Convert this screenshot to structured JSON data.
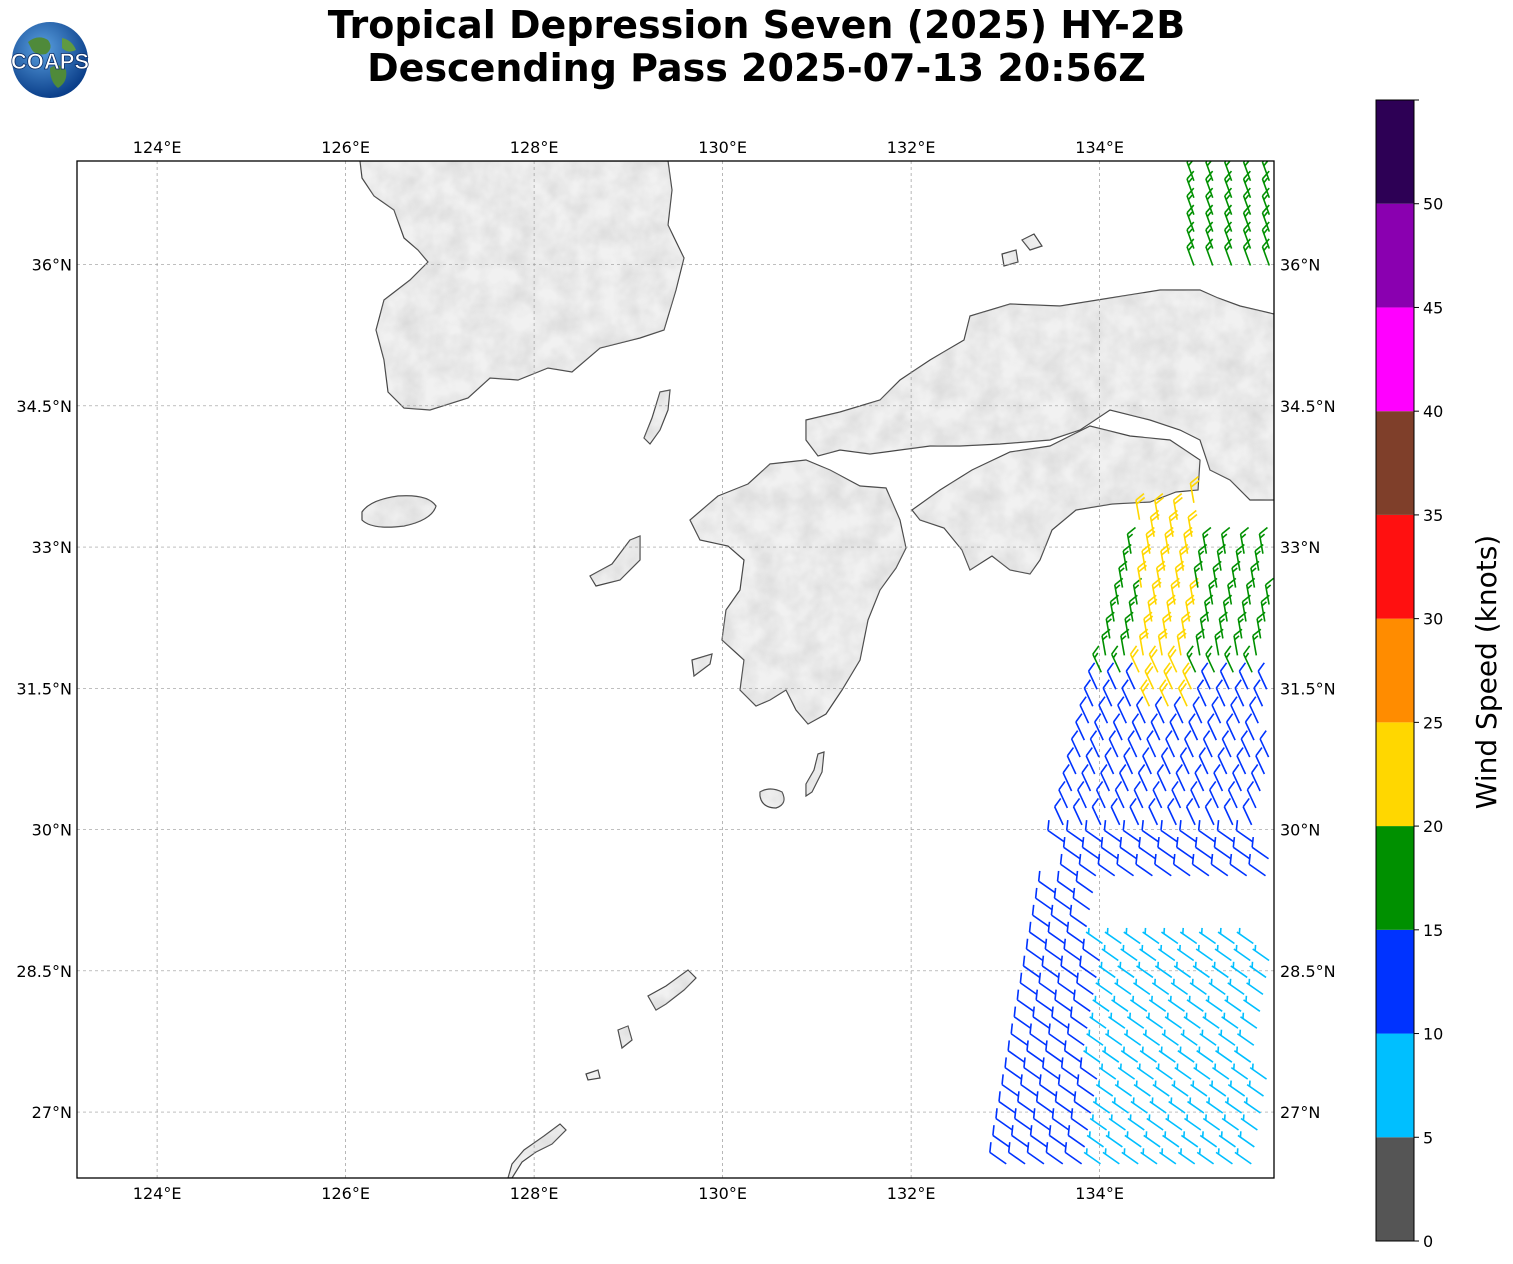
{
  "title": {
    "line1": "Tropical Depression Seven (2025) HY-2B",
    "line2": "Descending Pass 2025-07-13 20:56Z"
  },
  "logo": {
    "text": "COAPS",
    "icon": "globe-logo-icon"
  },
  "map": {
    "lon_range": [
      123.15,
      135.85
    ],
    "lat_range": [
      26.3,
      37.1
    ],
    "lon_ticks": [
      124,
      126,
      128,
      130,
      132,
      134
    ],
    "lon_labels": [
      "124°E",
      "126°E",
      "128°E",
      "130°E",
      "132°E",
      "134°E"
    ],
    "lat_ticks": [
      27,
      28.5,
      30,
      31.5,
      33,
      34.5,
      36
    ],
    "lat_labels": [
      "27°N",
      "28.5°N",
      "30°N",
      "31.5°N",
      "33°N",
      "34.5°N",
      "36°N"
    ],
    "gridlines": true,
    "terrain_shading": "grayscale",
    "coastline_color": "#444444"
  },
  "colorbar": {
    "label": "Wind Speed (knots)",
    "tick_values": [
      0,
      5,
      10,
      15,
      20,
      25,
      30,
      35,
      40,
      45,
      50
    ],
    "tick_labels": [
      "0",
      "5",
      "10",
      "15",
      "20",
      "25",
      "30",
      "35",
      "40",
      "45",
      "50"
    ],
    "bins": [
      {
        "min": 0,
        "max": 5,
        "color": "#555555"
      },
      {
        "min": 5,
        "max": 10,
        "color": "#00BFFF"
      },
      {
        "min": 10,
        "max": 15,
        "color": "#0033FF"
      },
      {
        "min": 15,
        "max": 20,
        "color": "#009000"
      },
      {
        "min": 20,
        "max": 25,
        "color": "#FFD700"
      },
      {
        "min": 25,
        "max": 30,
        "color": "#FF8C00"
      },
      {
        "min": 30,
        "max": 35,
        "color": "#FF1010"
      },
      {
        "min": 35,
        "max": 40,
        "color": "#7F3F2A"
      },
      {
        "min": 40,
        "max": 45,
        "color": "#FF00FF"
      },
      {
        "min": 45,
        "max": 50,
        "color": "#8A00B0"
      },
      {
        "min": 50,
        "max": 55,
        "color": "#2D0055"
      }
    ]
  },
  "wind_barbs": {
    "swath": "HY-2B scatterometer, eastern edge of domain",
    "speed_regions": [
      {
        "description": "southern swath",
        "lat": [
          26.3,
          28.9
        ],
        "lon": [
          134.0,
          135.85
        ],
        "knots": 8
      },
      {
        "description": "southern swath west",
        "lat": [
          26.3,
          29.5
        ],
        "lon": [
          133.0,
          134.0
        ],
        "knots": 12
      },
      {
        "description": "central swath",
        "lat": [
          29.5,
          31.6
        ],
        "lon": [
          133.6,
          135.85
        ],
        "knots": 13
      },
      {
        "description": "northern swath",
        "lat": [
          31.6,
          33.1
        ],
        "lon": [
          134.0,
          135.85
        ],
        "knots": 17
      },
      {
        "description": "yellow band",
        "lat": [
          31.3,
          33.5
        ],
        "lon": [
          134.4,
          135.0
        ],
        "knots": 21
      },
      {
        "description": "north of Shikoku",
        "lat": [
          35.9,
          37.1
        ],
        "lon": [
          135.0,
          135.85
        ],
        "knots": 16
      }
    ]
  }
}
